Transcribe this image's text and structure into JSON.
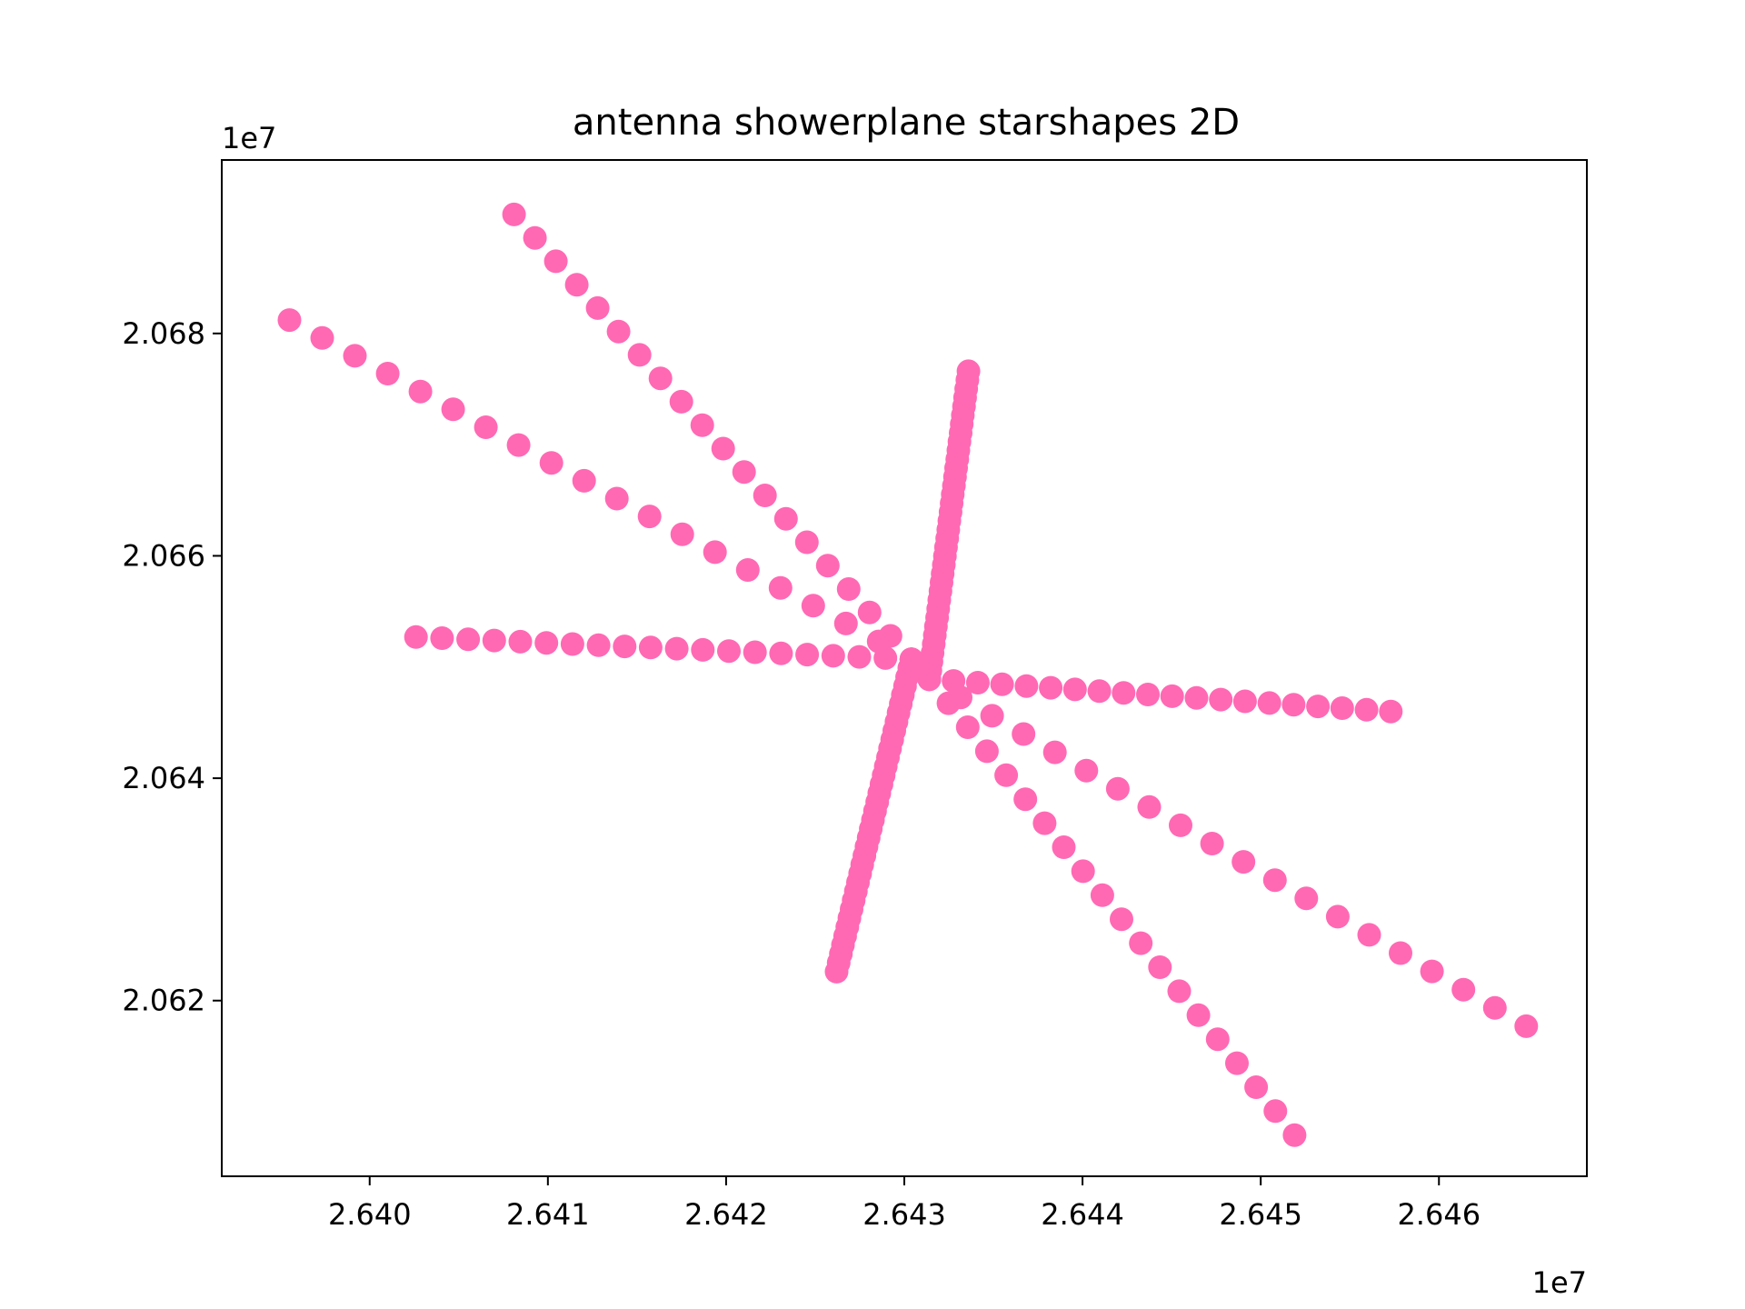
{
  "chart_data": {
    "type": "scatter",
    "title": "antenna showerplane starshapes 2D",
    "xlabel": "",
    "ylabel": "",
    "x_offset_label": "1e7",
    "y_offset_label": "1e7",
    "x_scale": 10000000,
    "y_scale": 10000000,
    "xlim": [
      26391700,
      26468300
    ],
    "ylim": [
      20604200,
      20695600
    ],
    "xticks": [
      26400000,
      26410000,
      26420000,
      26430000,
      26440000,
      26450000,
      26460000
    ],
    "xtick_labels": [
      "2.640",
      "2.641",
      "2.642",
      "2.643",
      "2.644",
      "2.645",
      "2.646"
    ],
    "yticks": [
      20620000,
      20640000,
      20660000,
      20680000
    ],
    "ytick_labels": [
      "2.062",
      "2.064",
      "2.066",
      "2.068"
    ],
    "grid": false,
    "marker_color": "#ff69b4",
    "series": [
      {
        "type": "line_of_points",
        "from": [
          26430400,
          20650700
        ],
        "to": [
          26408100,
          20690700
        ],
        "count": 20
      },
      {
        "type": "line_of_points",
        "from": [
          26430400,
          20650700
        ],
        "to": [
          26395500,
          20681200
        ],
        "count": 20
      },
      {
        "type": "line_of_points",
        "from": [
          26430400,
          20650700
        ],
        "to": [
          26402600,
          20652700
        ],
        "count": 20
      },
      {
        "type": "line_of_points",
        "from": [
          26430400,
          20650700
        ],
        "to": [
          26426200,
          20622600
        ],
        "count": 36
      },
      {
        "type": "line_of_points",
        "from": [
          26431400,
          20648900
        ],
        "to": [
          26433600,
          20676600
        ],
        "count": 36
      },
      {
        "type": "line_of_points",
        "from": [
          26431400,
          20648900
        ],
        "to": [
          26457300,
          20646000
        ],
        "count": 20
      },
      {
        "type": "line_of_points",
        "from": [
          26431400,
          20648900
        ],
        "to": [
          26464900,
          20617700
        ],
        "count": 20
      },
      {
        "type": "line_of_points",
        "from": [
          26431400,
          20648900
        ],
        "to": [
          26451900,
          20607900
        ],
        "count": 20
      }
    ]
  }
}
